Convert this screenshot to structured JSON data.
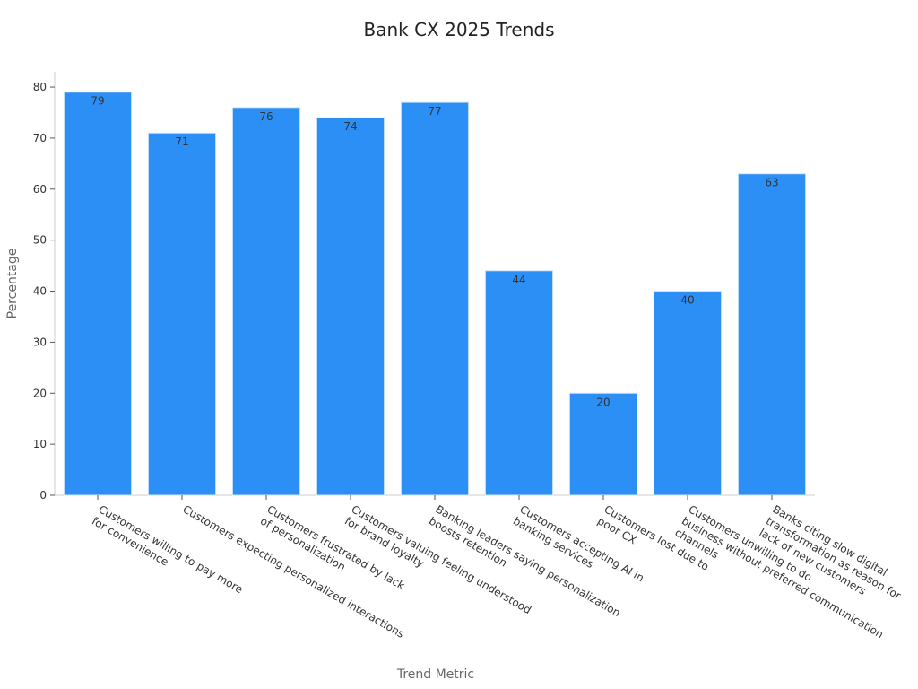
{
  "chart_data": {
    "type": "bar",
    "title": "Bank CX 2025 Trends",
    "xlabel": "Trend Metric",
    "ylabel": "Percentage",
    "ylim": [
      0,
      83
    ],
    "yticks": [
      0,
      10,
      20,
      30,
      40,
      50,
      60,
      70,
      80
    ],
    "grid": false,
    "categories": [
      [
        "Customers willing to pay more",
        "for convenience"
      ],
      [
        "Customers expecting personalized interactions"
      ],
      [
        "Customers frustrated by lack",
        "of personalization"
      ],
      [
        "Customers valuing feeling understood",
        "for brand loyalty"
      ],
      [
        "Banking leaders saying personalization",
        "boosts retention"
      ],
      [
        "Customers accepting AI in",
        "banking services"
      ],
      [
        "Customers lost due to",
        "poor CX"
      ],
      [
        "Customers unwilling to do",
        "business without preferred communication",
        "channels"
      ],
      [
        "Banks citing slow digital",
        "transformation as reason for",
        "lack of new customers"
      ]
    ],
    "values": [
      79,
      71,
      76,
      74,
      77,
      44,
      20,
      40,
      63
    ],
    "bar_color": "#2b8ff5",
    "bar_edge_color": "#d0e4f8",
    "label_color": "#333333"
  }
}
